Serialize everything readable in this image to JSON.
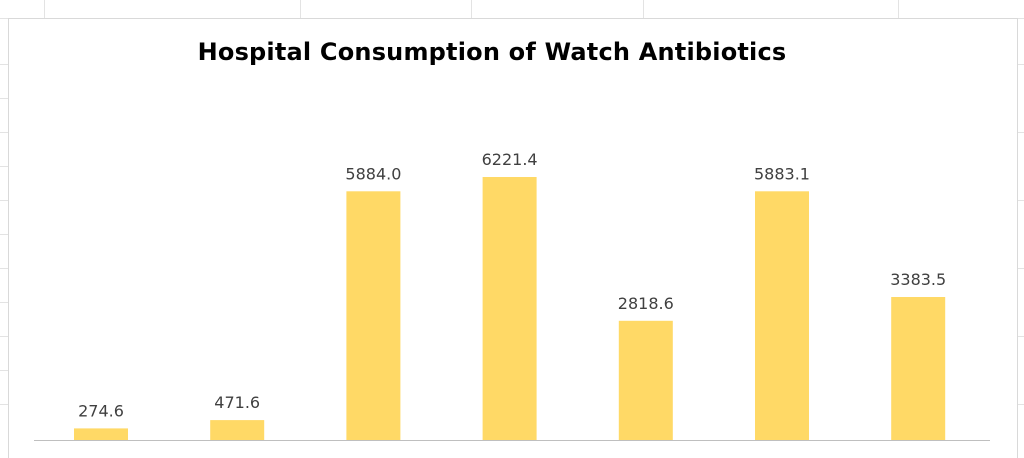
{
  "chart_data": {
    "type": "bar",
    "title": "Hospital Consumption of Watch Antibiotics",
    "xlabel": "",
    "ylabel": "",
    "categories": [
      "",
      "",
      "",
      "",
      "",
      "",
      ""
    ],
    "values": [
      274.6,
      471.6,
      5884.0,
      6221.4,
      2818.6,
      5883.1,
      3383.5
    ],
    "value_labels": [
      "274.6",
      "471.6",
      "5884.0",
      "6221.4",
      "2818.6",
      "5883.1",
      "3383.5"
    ],
    "ylim": [
      0,
      6221.4
    ],
    "bar_color": "#FFD966",
    "label_color": "#404040",
    "axis_color": "#BFBFBF",
    "grid": false,
    "legend": "none"
  }
}
